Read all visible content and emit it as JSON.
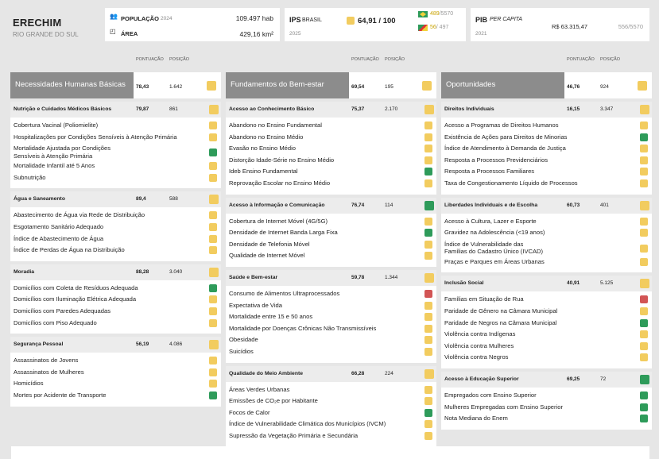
{
  "header": {
    "city": "ERECHIM",
    "state": "RIO GRANDE DO SUL",
    "population_label": "POPULAÇÃO",
    "population_year": "2024",
    "population_value": "109.497 hab",
    "area_label": "ÁREA",
    "area_value": "429,16 km²",
    "ips_label": "IPS",
    "ips_country": "BRASIL",
    "ips_year": "2025",
    "ips_score": "64,91 / 100",
    "rank_national": "489",
    "rank_national_total": "/5570",
    "rank_state": "56",
    "rank_state_total": "/ 497",
    "pib_label": "PIB",
    "pib_sub": "PER CAPITA",
    "pib_year": "2021",
    "pib_value": "R$ 63.315,47",
    "pib_rank": "556",
    "pib_rank_total": "/5570"
  },
  "colors": {
    "yellow": "#f2cc5f",
    "green": "#2e9b5a",
    "red": "#d25555",
    "banner_gray": "#8c8c8c"
  },
  "col_headers": {
    "score": "PONTUAÇÃO",
    "position": "POSIÇÃO"
  },
  "columns": [
    {
      "title": "Necessidades Humanas Básicas",
      "score": "78,43",
      "position": "1.642",
      "color": "yellow",
      "sections": [
        {
          "title": "Nutrição e Cuidados Médicos Básicos",
          "score": "79,87",
          "position": "861",
          "color": "yellow",
          "items": [
            {
              "label": "Cobertura Vacinal (Poliomielite)",
              "color": "yellow"
            },
            {
              "label": "Hospitalizações por Condições Sensíveis à Atenção Primária",
              "color": "yellow"
            },
            {
              "label": "Mortalidade Ajustada por Condições",
              "label2": "Sensíveis à Atenção Primária",
              "color": "green"
            },
            {
              "label": "Mortalidade Infantil até 5 Anos",
              "color": "yellow"
            },
            {
              "label": "Subnutrição",
              "color": "yellow"
            }
          ]
        },
        {
          "title": "Água e Saneamento",
          "score": "89,4",
          "position": "588",
          "color": "yellow",
          "items": [
            {
              "label": "Abastecimento de Água via Rede de Distribuição",
              "color": "yellow"
            },
            {
              "label": "Esgotamento Sanitário Adequado",
              "color": "yellow"
            },
            {
              "label": "Índice de Abastecimento de Água",
              "color": "yellow"
            },
            {
              "label": "Índice de Perdas de Água na Distribuição",
              "color": "yellow"
            }
          ]
        },
        {
          "title": "Moradia",
          "score": "88,28",
          "position": "3.040",
          "color": "yellow",
          "items": [
            {
              "label": "Domicílios com Coleta de Resíduos Adequada",
              "color": "green"
            },
            {
              "label": "Domicílios com Iluminação Elétrica Adequada",
              "color": "yellow"
            },
            {
              "label": "Domicílios com Paredes Adequadas",
              "color": "yellow"
            },
            {
              "label": "Domicílios com Piso Adequado",
              "color": "yellow"
            }
          ]
        },
        {
          "title": "Segurança Pessoal",
          "score": "56,19",
          "position": "4.086",
          "color": "yellow",
          "items": [
            {
              "label": "Assassinatos de Jovens",
              "color": "yellow"
            },
            {
              "label": "Assassinatos de Mulheres",
              "color": "yellow"
            },
            {
              "label": "Homicídios",
              "color": "yellow"
            },
            {
              "label": "Mortes por Acidente de Transporte",
              "color": "green"
            }
          ]
        }
      ]
    },
    {
      "title": "Fundamentos do Bem-estar",
      "score": "69,54",
      "position": "195",
      "color": "yellow",
      "sections": [
        {
          "title": "Acesso ao Conhecimento Básico",
          "score": "75,37",
          "position": "2.170",
          "color": "yellow",
          "items": [
            {
              "label": "Abandono no Ensino Fundamental",
              "color": "yellow"
            },
            {
              "label": "Abandono no Ensino Médio",
              "color": "yellow"
            },
            {
              "label": "Evasão no Ensino Médio",
              "color": "yellow"
            },
            {
              "label": "Distorção Idade-Série no Ensino Médio",
              "color": "yellow"
            },
            {
              "label": "Ideb Ensino Fundamental",
              "color": "green"
            },
            {
              "label": "Reprovação Escolar no Ensino Médio",
              "color": "yellow"
            }
          ]
        },
        {
          "title": "Acesso à Informação e Comunicação",
          "score": "76,74",
          "position": "114",
          "color": "green",
          "items": [
            {
              "label": "Cobertura de Internet Móvel (4G/5G)",
              "color": "yellow"
            },
            {
              "label": "Densidade de Internet Banda Larga Fixa",
              "color": "green"
            },
            {
              "label": "Densidade de Telefonia Móvel",
              "color": "yellow"
            },
            {
              "label": "Qualidade de Internet Móvel",
              "color": "yellow"
            }
          ]
        },
        {
          "title": "Saúde e Bem-estar",
          "score": "59,78",
          "position": "1.344",
          "color": "yellow",
          "items": [
            {
              "label": "Consumo de Alimentos Ultraprocessados",
              "color": "red"
            },
            {
              "label": "Expectativa de Vida",
              "color": "yellow"
            },
            {
              "label": "Mortalidade entre 15 e 50 anos",
              "color": "yellow"
            },
            {
              "label": "Mortalidade por Doenças Crônicas Não Transmissíveis",
              "color": "yellow"
            },
            {
              "label": "Obesidade",
              "color": "yellow"
            },
            {
              "label": "Suicídios",
              "color": "yellow"
            }
          ]
        },
        {
          "title": "Qualidade do Meio Ambiente",
          "score": "66,28",
          "position": "224",
          "color": "yellow",
          "items": [
            {
              "label": "Áreas Verdes Urbanas",
              "color": "yellow"
            },
            {
              "label": "Emissões de CO₂e por Habitante",
              "color": "yellow"
            },
            {
              "label": "Focos de Calor",
              "color": "green"
            },
            {
              "label": "Índice de Vulnerabilidade Climática dos Municípios (IVCM)",
              "color": "yellow"
            },
            {
              "label": "Supressão da Vegetação Primária e Secundária",
              "color": "yellow"
            }
          ]
        }
      ]
    },
    {
      "title": "Oportunidades",
      "score": "46,76",
      "position": "924",
      "color": "yellow",
      "sections": [
        {
          "title": "Direitos Individuais",
          "score": "16,15",
          "position": "3.347",
          "color": "yellow",
          "items": [
            {
              "label": "Acesso a Programas de Direitos Humanos",
              "color": "yellow"
            },
            {
              "label": "Existência de Ações para Direitos de Minorias",
              "color": "green"
            },
            {
              "label": "Índice de Atendimento à Demanda de Justiça",
              "color": "yellow"
            },
            {
              "label": "Resposta a Processos Previdenciários",
              "color": "yellow"
            },
            {
              "label": "Resposta a Processos Familiares",
              "color": "yellow"
            },
            {
              "label": "Taxa de Congestionamento Líquido de Processos",
              "color": "yellow"
            }
          ]
        },
        {
          "title": "Liberdades Individuais e de Escolha",
          "score": "60,73",
          "position": "401",
          "color": "yellow",
          "items": [
            {
              "label": "Acesso à Cultura, Lazer e Esporte",
              "color": "yellow"
            },
            {
              "label": "Gravidez na Adolescência (<19 anos)",
              "color": "yellow"
            },
            {
              "label": "Índice de Vulnerabilidade das",
              "label2": "Famílias do Cadastro Único (IVCAD)",
              "color": "yellow"
            },
            {
              "label": "Praças e Parques em Áreas Urbanas",
              "color": "yellow"
            }
          ]
        },
        {
          "title": "Inclusão Social",
          "score": "40,91",
          "position": "5.125",
          "color": "yellow",
          "items": [
            {
              "label": "Famílias em Situação de Rua",
              "color": "red"
            },
            {
              "label": "Paridade de Gênero na Câmara Municipal",
              "color": "yellow"
            },
            {
              "label": "Paridade de Negros na Câmara Municipal",
              "color": "green"
            },
            {
              "label": "Violência contra Indígenas",
              "color": "yellow"
            },
            {
              "label": "Violência contra Mulheres",
              "color": "yellow"
            },
            {
              "label": "Violência contra Negros",
              "color": "yellow"
            }
          ]
        },
        {
          "title": "Acesso à Educação Superior",
          "score": "69,25",
          "position": "72",
          "color": "green",
          "items": [
            {
              "label": "Empregados com Ensino Superior",
              "color": "green"
            },
            {
              "label": "Mulheres Empregadas com Ensino Superior",
              "color": "green"
            },
            {
              "label": "Nota Mediana do Enem",
              "color": "green"
            }
          ]
        }
      ]
    }
  ]
}
